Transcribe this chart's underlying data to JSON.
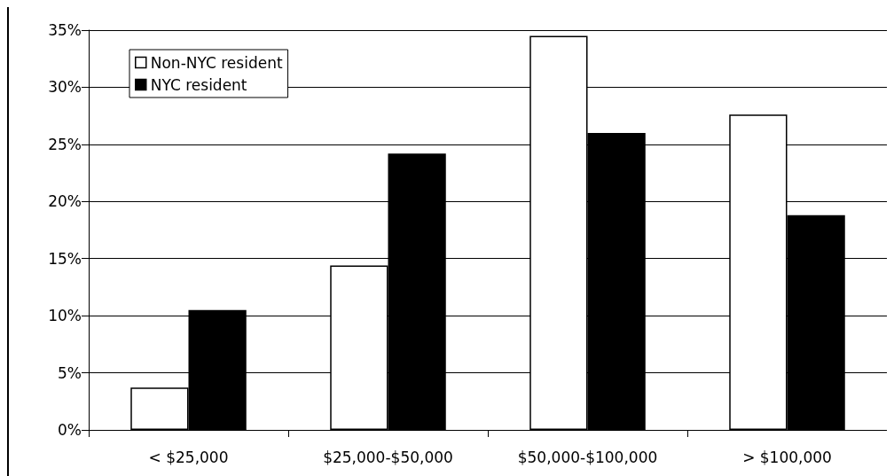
{
  "chart_data": {
    "type": "bar",
    "categories": [
      "< $25,000",
      "$25,000-$50,000",
      "$50,000-$100,000",
      "> $100,000"
    ],
    "series": [
      {
        "name": "Non-NYC resident",
        "color": "#ffffff",
        "values": [
          3.7,
          14.4,
          34.5,
          27.6
        ]
      },
      {
        "name": "NYC resident",
        "color": "#000000",
        "values": [
          10.5,
          24.2,
          26.0,
          18.8
        ]
      }
    ],
    "ylim": [
      0,
      35
    ],
    "yticks": [
      {
        "value": 0,
        "label": "0%"
      },
      {
        "value": 5,
        "label": "5%"
      },
      {
        "value": 10,
        "label": "10%"
      },
      {
        "value": 15,
        "label": "15%"
      },
      {
        "value": 20,
        "label": "20%"
      },
      {
        "value": 25,
        "label": "25%"
      },
      {
        "value": 30,
        "label": "30%"
      },
      {
        "value": 35,
        "label": "35%"
      }
    ],
    "grid": "y",
    "legend": "top left"
  }
}
